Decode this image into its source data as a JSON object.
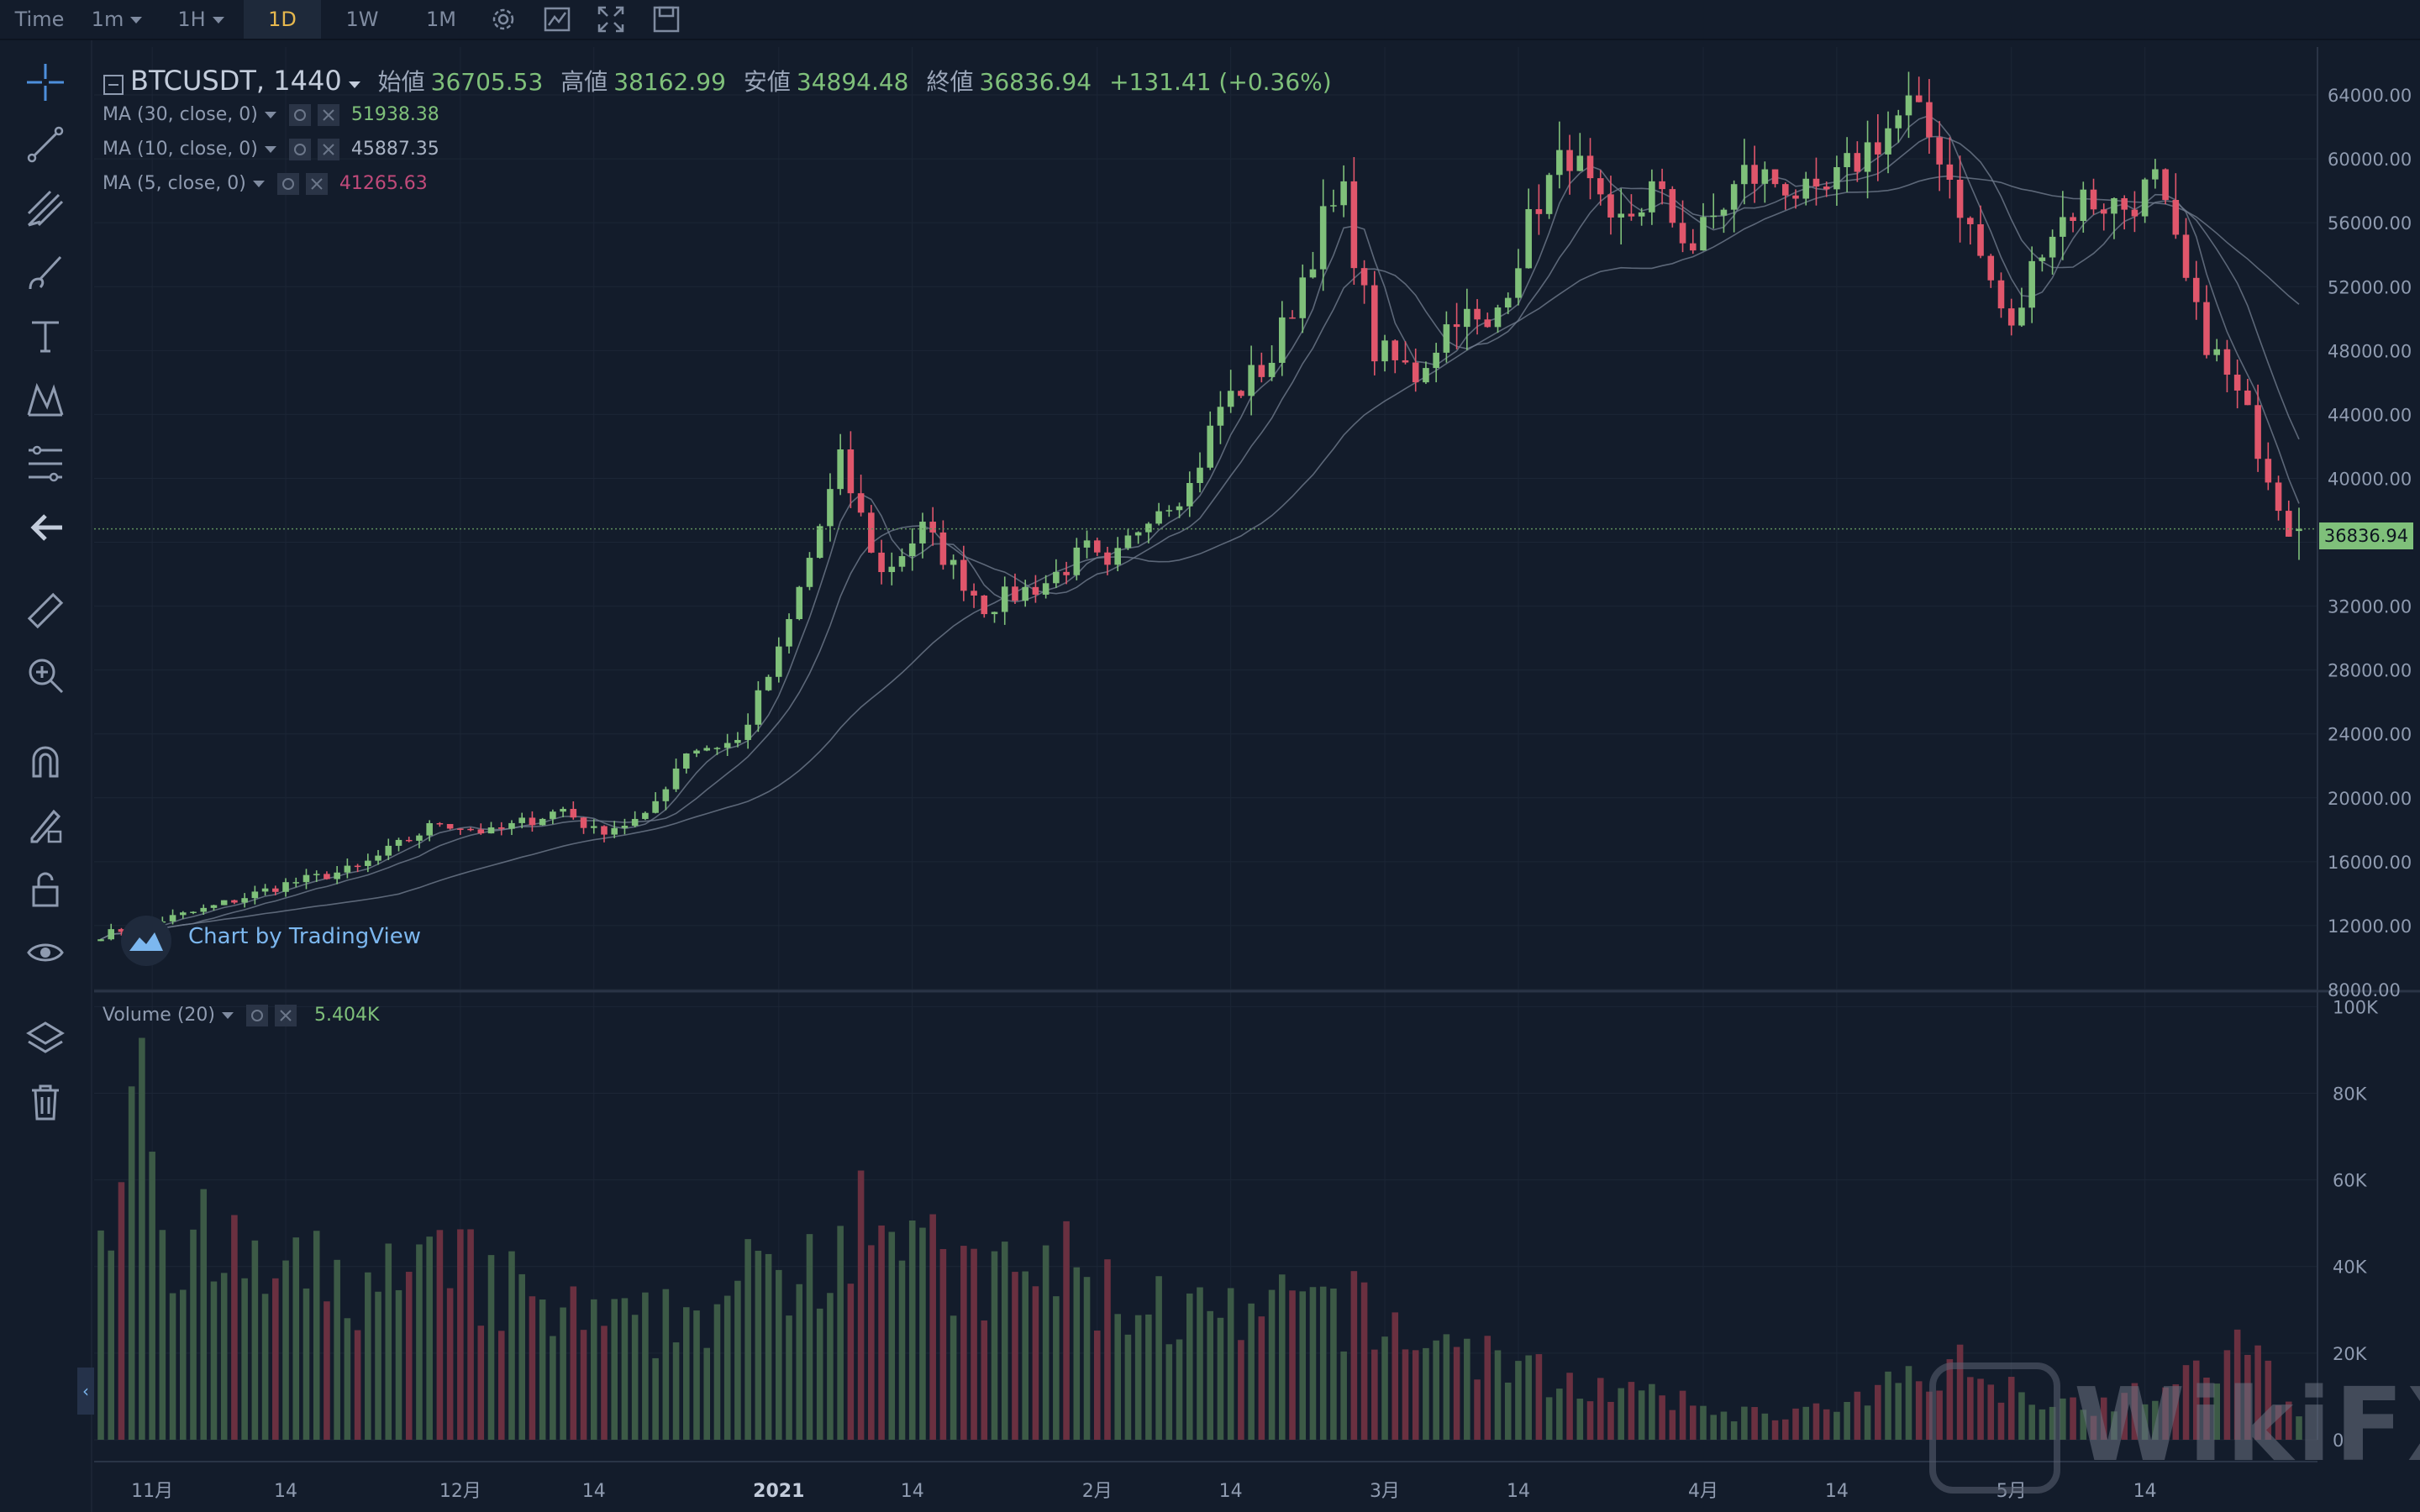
{
  "toolbar": {
    "time_label": "Time",
    "interval_1m": "1m",
    "interval_1h": "1H",
    "interval_1d": "1D",
    "interval_1w": "1W",
    "interval_1M": "1M",
    "icons": [
      "settings-icon",
      "indicators-icon",
      "fullscreen-icon",
      "save-icon"
    ]
  },
  "sidebar": {
    "icons": [
      "crosshair-icon",
      "trend-line-icon",
      "pitchfork-icon",
      "brush-icon",
      "text-icon",
      "pattern-icon",
      "fib-icon",
      "back-arrow-icon",
      "ruler-icon",
      "zoom-in-icon",
      "magnet-icon",
      "lock-drawing-icon",
      "unlock-icon",
      "eye-icon",
      "layers-icon",
      "trash-icon"
    ]
  },
  "legend": {
    "symbol": "BTCUSDT, 1440",
    "open_label": "始値",
    "open_value": "36705.53",
    "high_label": "高値",
    "high_value": "38162.99",
    "low_label": "安値",
    "low_value": "34894.48",
    "close_label": "終値",
    "close_value": "36836.94",
    "change": "+131.41 (+0.36%)",
    "ma30_label": "MA (30, close, 0)",
    "ma30_value": "51938.38",
    "ma10_label": "MA (10, close, 0)",
    "ma10_value": "45887.35",
    "ma5_label": "MA (5, close, 0)",
    "ma5_value": "41265.63",
    "volume_label": "Volume (20)",
    "volume_value": "5.404K"
  },
  "watermark": "Chart by TradingView",
  "brand_watermark": "WikiFX",
  "last_price_tag": "36836.94",
  "colors": {
    "background": "#131c2b",
    "up": "#7fc07a",
    "down": "#e0566b",
    "volume_up": "#3c5a46",
    "volume_down": "#6a3040",
    "grid": "#1c2636",
    "ma": "#6f7a8c",
    "text": "#8f9bb0"
  },
  "chart_data": {
    "type": "candlestick",
    "symbol": "BTCUSDT",
    "price_axis": {
      "ticks": [
        "8000.00",
        "12000.00",
        "16000.00",
        "20000.00",
        "24000.00",
        "28000.00",
        "32000.00",
        "36000.00",
        "40000.00",
        "44000.00",
        "48000.00",
        "52000.00",
        "56000.00",
        "60000.00",
        "64000.00"
      ],
      "ylim": [
        8000,
        67000
      ]
    },
    "volume_axis": {
      "ticks": [
        "0",
        "20K",
        "40K",
        "60K",
        "80K",
        "100K"
      ],
      "ylim": [
        0,
        102000
      ]
    },
    "x_ticks": [
      "11月",
      "14",
      "12月",
      "14",
      "2021",
      "14",
      "2月",
      "14",
      "3月",
      "14",
      "4月",
      "14",
      "5月",
      "14"
    ],
    "x_tick_days": [
      5,
      18,
      35,
      48,
      66,
      79,
      97,
      110,
      125,
      138,
      156,
      169,
      186,
      199
    ],
    "ma30_last": 51938.38,
    "ma10_last": 45887.35,
    "ma5_last": 41265.63,
    "last_candle": {
      "open": 36705.53,
      "high": 38162.99,
      "low": 34894.48,
      "close": 36836.94
    },
    "close_anchors": [
      [
        0,
        11400
      ],
      [
        10,
        13000
      ],
      [
        18,
        14600
      ],
      [
        25,
        15600
      ],
      [
        33,
        18500
      ],
      [
        38,
        17800
      ],
      [
        45,
        19300
      ],
      [
        48,
        17900
      ],
      [
        53,
        18700
      ],
      [
        57,
        23000
      ],
      [
        62,
        23500
      ],
      [
        66,
        29000
      ],
      [
        72,
        41000
      ],
      [
        76,
        34000
      ],
      [
        80,
        36800
      ],
      [
        86,
        32000
      ],
      [
        92,
        33500
      ],
      [
        96,
        35500
      ],
      [
        98,
        34000
      ],
      [
        102,
        38000
      ],
      [
        106,
        39500
      ],
      [
        109,
        44500
      ],
      [
        114,
        47500
      ],
      [
        119,
        56000
      ],
      [
        121,
        57500
      ],
      [
        124,
        48000
      ],
      [
        128,
        46500
      ],
      [
        132,
        50500
      ],
      [
        135,
        49000
      ],
      [
        140,
        57500
      ],
      [
        143,
        60500
      ],
      [
        147,
        55200
      ],
      [
        151,
        58000
      ],
      [
        155,
        54500
      ],
      [
        160,
        59000
      ],
      [
        164,
        58500
      ],
      [
        167,
        57000
      ],
      [
        171,
        60000
      ],
      [
        176,
        63200
      ],
      [
        179,
        60500
      ],
      [
        182,
        55500
      ],
      [
        186,
        49000
      ],
      [
        189,
        55000
      ],
      [
        193,
        57500
      ],
      [
        197,
        57000
      ],
      [
        200,
        58500
      ],
      [
        204,
        50000
      ],
      [
        209,
        43800
      ],
      [
        213,
        37000
      ],
      [
        214,
        36836.94
      ]
    ],
    "volume_anchors": [
      [
        0,
        45000
      ],
      [
        4,
        100000
      ],
      [
        7,
        46000
      ],
      [
        15,
        38000
      ],
      [
        25,
        35000
      ],
      [
        35,
        38000
      ],
      [
        45,
        28000
      ],
      [
        52,
        25000
      ],
      [
        60,
        32000
      ],
      [
        68,
        40000
      ],
      [
        72,
        53000
      ],
      [
        76,
        60000
      ],
      [
        80,
        40000
      ],
      [
        86,
        35000
      ],
      [
        93,
        40000
      ],
      [
        98,
        33000
      ],
      [
        104,
        30000
      ],
      [
        110,
        26000
      ],
      [
        120,
        32000
      ],
      [
        125,
        25000
      ],
      [
        132,
        22000
      ],
      [
        140,
        15000
      ],
      [
        150,
        10000
      ],
      [
        160,
        6000
      ],
      [
        170,
        7000
      ],
      [
        176,
        15000
      ],
      [
        180,
        18000
      ],
      [
        186,
        12000
      ],
      [
        193,
        8000
      ],
      [
        198,
        10000
      ],
      [
        204,
        14000
      ],
      [
        209,
        22000
      ],
      [
        214,
        5404
      ]
    ]
  }
}
